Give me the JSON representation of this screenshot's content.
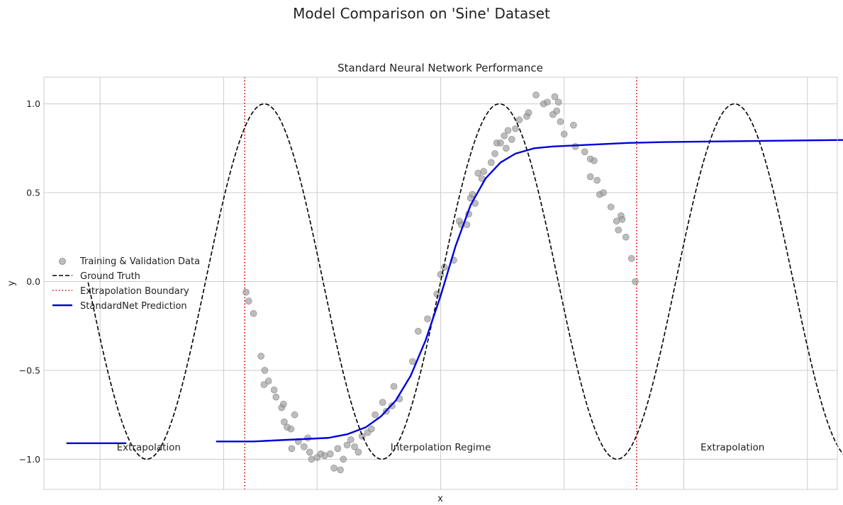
{
  "suptitle": "Model Comparison on 'Sine' Dataset",
  "chart_data": {
    "type": "line",
    "title": "Standard Neural Network Performance",
    "xlabel": "x",
    "ylabel": "y",
    "xlim": [
      -10.6,
      10.6
    ],
    "ylim": [
      -1.17,
      1.15
    ],
    "x_grid_ticks": [
      -9.1,
      -5.8,
      -3.3,
      0.0,
      3.3,
      6.5,
      9.8
    ],
    "x_tick_labels_visible": false,
    "y_ticks": [
      1.0,
      0.5,
      0.0,
      -0.5,
      -1.0
    ],
    "y_tick_labels": [
      "1.0",
      "0.5",
      "0.0",
      "−0.5",
      "−1.0"
    ],
    "grid": true,
    "legend_position": "center-left",
    "extrapolation_boundaries": [
      -5.236,
      5.236
    ],
    "series": [
      {
        "name": "Training & Validation Data",
        "type": "scatter",
        "color": "#999999",
        "points": [
          [
            -5.2,
            -0.06
          ],
          [
            -5.13,
            -0.11
          ],
          [
            -5.0,
            -0.18
          ],
          [
            -4.8,
            -0.42
          ],
          [
            -4.7,
            -0.5
          ],
          [
            -4.72,
            -0.58
          ],
          [
            -4.6,
            -0.56
          ],
          [
            -4.45,
            -0.61
          ],
          [
            -4.4,
            -0.65
          ],
          [
            -4.25,
            -0.71
          ],
          [
            -4.2,
            -0.69
          ],
          [
            -4.18,
            -0.79
          ],
          [
            -4.1,
            -0.82
          ],
          [
            -4.0,
            -0.83
          ],
          [
            -3.98,
            -0.94
          ],
          [
            -3.9,
            -0.75
          ],
          [
            -3.8,
            -0.9
          ],
          [
            -3.65,
            -0.93
          ],
          [
            -3.55,
            -0.88
          ],
          [
            -3.5,
            -0.96
          ],
          [
            -3.45,
            -1.0
          ],
          [
            -3.3,
            -0.99
          ],
          [
            -3.2,
            -0.97
          ],
          [
            -3.1,
            -0.98
          ],
          [
            -2.95,
            -0.97
          ],
          [
            -2.85,
            -1.05
          ],
          [
            -2.75,
            -0.94
          ],
          [
            -2.68,
            -1.06
          ],
          [
            -2.6,
            -1.0
          ],
          [
            -2.5,
            -0.92
          ],
          [
            -2.4,
            -0.89
          ],
          [
            -2.3,
            -0.93
          ],
          [
            -2.2,
            -0.96
          ],
          [
            -2.1,
            -0.87
          ],
          [
            -1.95,
            -0.85
          ],
          [
            -1.85,
            -0.83
          ],
          [
            -1.75,
            -0.75
          ],
          [
            -1.55,
            -0.68
          ],
          [
            -1.45,
            -0.73
          ],
          [
            -1.3,
            -0.7
          ],
          [
            -1.25,
            -0.59
          ],
          [
            -1.1,
            -0.66
          ],
          [
            -0.75,
            -0.45
          ],
          [
            -0.6,
            -0.28
          ],
          [
            -0.35,
            -0.21
          ],
          [
            -0.1,
            -0.07
          ],
          [
            0.0,
            0.04
          ],
          [
            0.1,
            0.08
          ],
          [
            0.35,
            0.12
          ],
          [
            0.5,
            0.34
          ],
          [
            0.55,
            0.32
          ],
          [
            0.7,
            0.32
          ],
          [
            0.75,
            0.38
          ],
          [
            0.8,
            0.47
          ],
          [
            0.85,
            0.49
          ],
          [
            0.92,
            0.44
          ],
          [
            1.0,
            0.61
          ],
          [
            1.1,
            0.58
          ],
          [
            1.15,
            0.62
          ],
          [
            1.35,
            0.67
          ],
          [
            1.45,
            0.72
          ],
          [
            1.5,
            0.78
          ],
          [
            1.6,
            0.78
          ],
          [
            1.7,
            0.82
          ],
          [
            1.75,
            0.75
          ],
          [
            1.8,
            0.85
          ],
          [
            1.9,
            0.8
          ],
          [
            2.0,
            0.86
          ],
          [
            2.1,
            0.91
          ],
          [
            2.3,
            0.93
          ],
          [
            2.35,
            0.95
          ],
          [
            2.55,
            1.05
          ],
          [
            2.75,
            1.0
          ],
          [
            2.85,
            1.01
          ],
          [
            3.0,
            0.94
          ],
          [
            3.05,
            1.04
          ],
          [
            3.1,
            0.96
          ],
          [
            3.15,
            1.01
          ],
          [
            3.2,
            0.9
          ],
          [
            3.3,
            0.83
          ],
          [
            3.55,
            0.88
          ],
          [
            3.6,
            0.76
          ],
          [
            3.85,
            0.73
          ],
          [
            4.0,
            0.69
          ],
          [
            4.1,
            0.68
          ],
          [
            4.18,
            0.57
          ],
          [
            4.25,
            0.49
          ],
          [
            4.35,
            0.5
          ],
          [
            4.55,
            0.42
          ],
          [
            4.7,
            0.34
          ],
          [
            4.75,
            0.29
          ],
          [
            4.82,
            0.37
          ],
          [
            4.85,
            0.35
          ],
          [
            4.95,
            0.25
          ],
          [
            5.1,
            0.13
          ],
          [
            5.2,
            0.0
          ],
          [
            4.0,
            0.59
          ]
        ]
      },
      {
        "name": "Ground Truth",
        "type": "line",
        "color": "#000000",
        "style": "dashed",
        "function": "sin(x)",
        "x_range": [
          -9.42,
          11.0
        ]
      },
      {
        "name": "Extrapolation Boundary",
        "type": "vline",
        "color": "#dd0000",
        "style": "dotted"
      },
      {
        "name": "StandardNet Prediction",
        "type": "line",
        "color": "#0000dd",
        "style": "solid",
        "x": [
          -10.0,
          -8.0,
          -6.0,
          -5.0,
          -4.0,
          -3.0,
          -2.5,
          -2.0,
          -1.6,
          -1.2,
          -0.8,
          -0.4,
          0.0,
          0.4,
          0.8,
          1.2,
          1.6,
          2.0,
          2.5,
          3.0,
          4.0,
          5.0,
          6.0,
          8.0,
          10.0,
          11.0
        ],
        "y": [
          -0.91,
          -0.91,
          -0.9,
          -0.9,
          -0.89,
          -0.88,
          -0.86,
          -0.82,
          -0.76,
          -0.67,
          -0.53,
          -0.33,
          -0.08,
          0.2,
          0.43,
          0.58,
          0.67,
          0.72,
          0.75,
          0.76,
          0.77,
          0.78,
          0.785,
          0.79,
          0.795,
          0.797
        ],
        "gaps_x": [
          [
            -8.4,
            -6.0
          ]
        ]
      }
    ],
    "annotations": [
      {
        "text": "Extrapolation",
        "x": -7.8,
        "y": -0.93
      },
      {
        "text": "Interpolation Regime",
        "x": 0.0,
        "y": -0.93
      },
      {
        "text": "Extrapolation",
        "x": 7.8,
        "y": -0.93
      }
    ]
  }
}
